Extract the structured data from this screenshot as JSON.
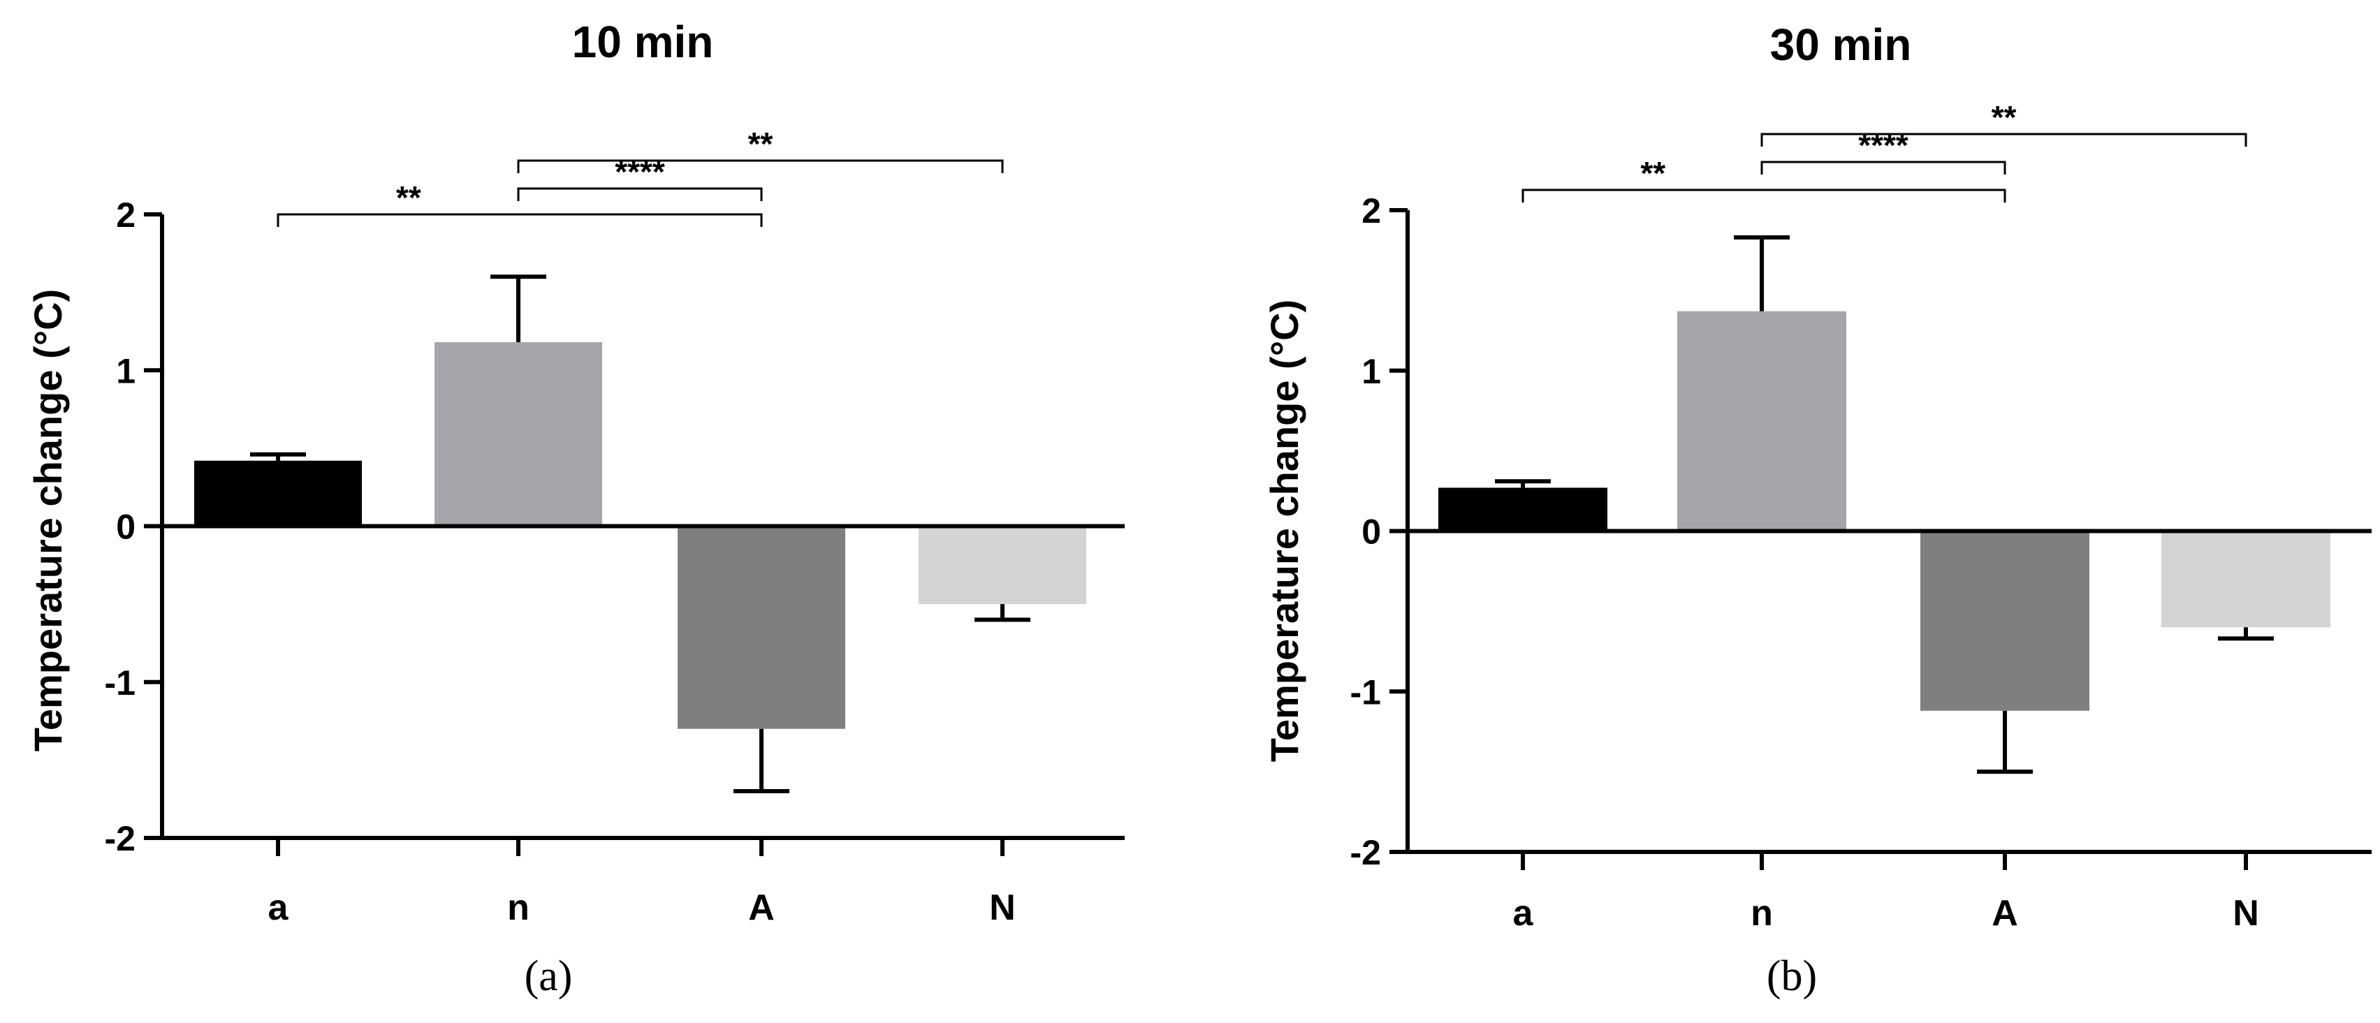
{
  "chart_data": [
    {
      "type": "bar",
      "panel_label": "(a)",
      "title": "10 min",
      "xlabel": "",
      "ylabel": "Temperature change (°C)",
      "ylim": [
        -2,
        2
      ],
      "yticks": [
        "2",
        "1",
        "0",
        "-1",
        "-2"
      ],
      "categories": [
        "a",
        "n",
        "A",
        "N"
      ],
      "values": [
        0.42,
        1.18,
        -1.3,
        -0.5
      ],
      "errors": [
        0.04,
        0.42,
        0.4,
        0.1
      ],
      "colors": [
        "#000000",
        "#a6a5ab",
        "#7f7f7f",
        "#d4d4d4"
      ],
      "significance": [
        {
          "from": "a",
          "to": "A",
          "label": "**"
        },
        {
          "from": "n",
          "to": "A",
          "label": "****"
        },
        {
          "from": "n",
          "to": "N",
          "label": "**"
        }
      ]
    },
    {
      "type": "bar",
      "panel_label": "(b)",
      "title": "30 min",
      "xlabel": "",
      "ylabel": "Temperature change (°C)",
      "ylim": [
        -2,
        2
      ],
      "yticks": [
        "2",
        "1",
        "0",
        "-1",
        "-2"
      ],
      "categories": [
        "a",
        "n",
        "A",
        "N"
      ],
      "values": [
        0.27,
        1.37,
        -1.12,
        -0.6
      ],
      "errors": [
        0.04,
        0.46,
        0.38,
        0.07
      ],
      "colors": [
        "#000000",
        "#a6a5ab",
        "#7f7f7f",
        "#d4d4d4"
      ],
      "significance": [
        {
          "from": "a",
          "to": "A",
          "label": "**"
        },
        {
          "from": "n",
          "to": "A",
          "label": "****"
        },
        {
          "from": "n",
          "to": "N",
          "label": "**"
        }
      ]
    }
  ]
}
